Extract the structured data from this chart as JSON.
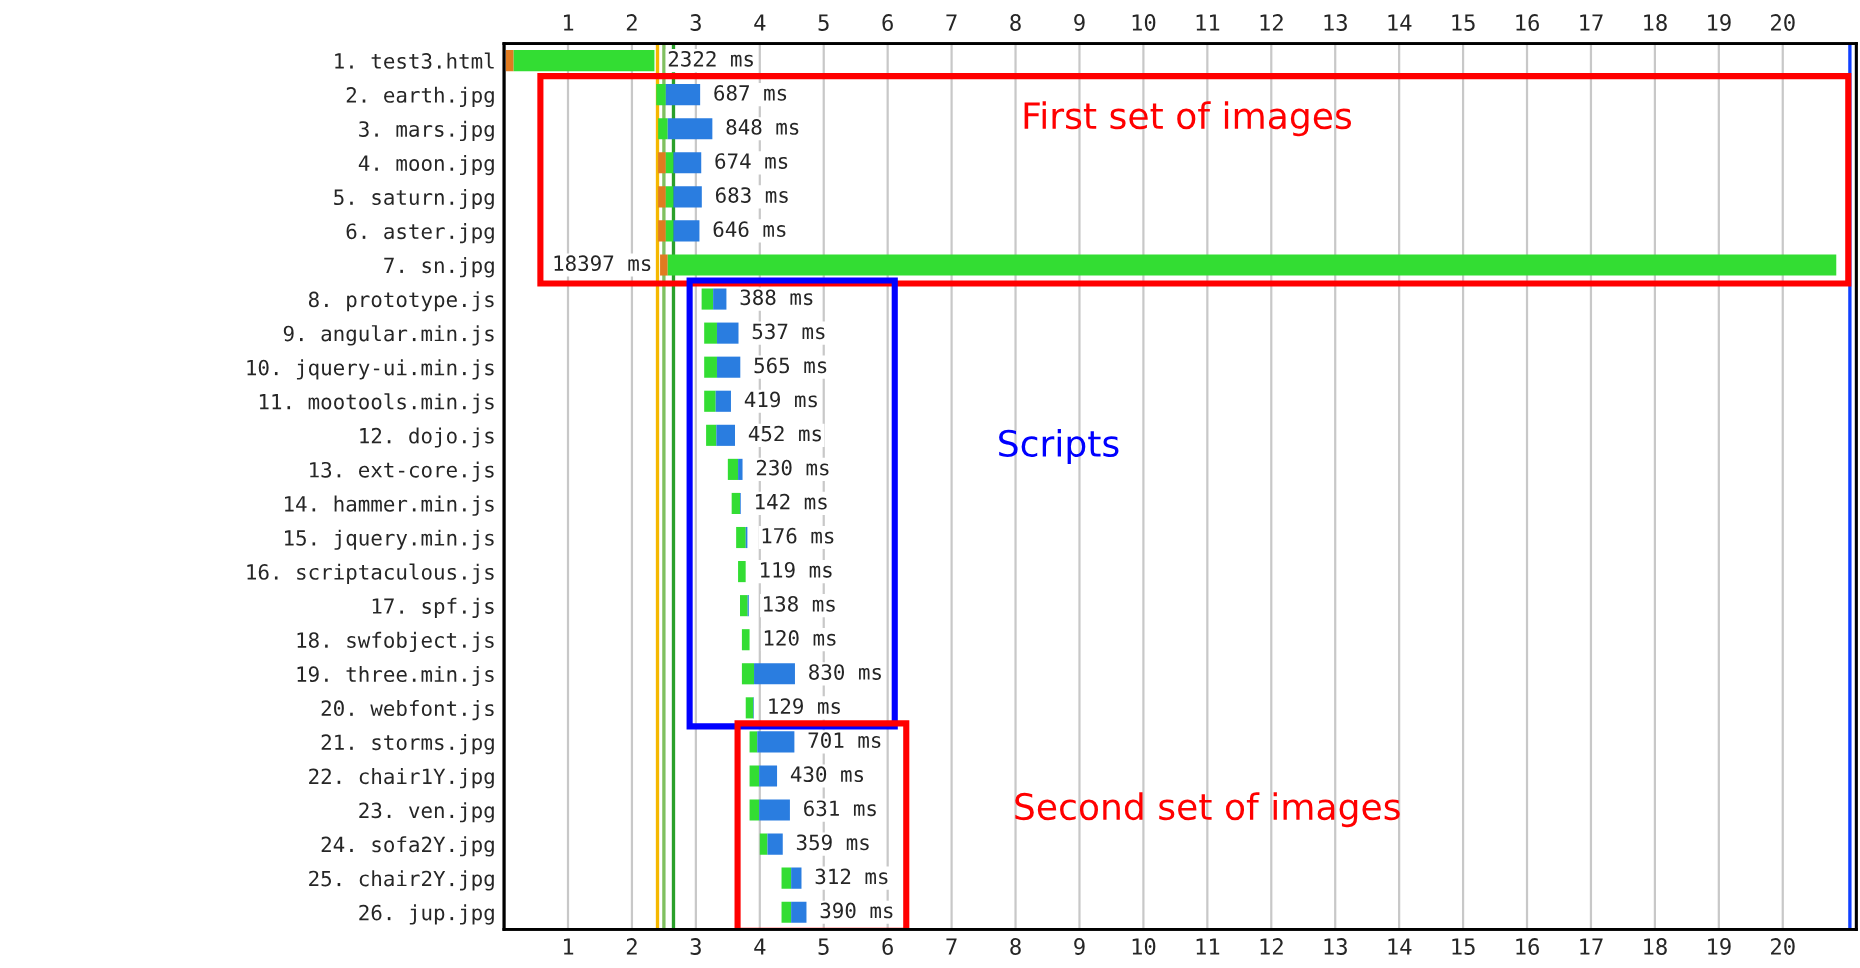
{
  "chart_data": {
    "type": "bar",
    "orientation": "horizontal",
    "categories": [
      "1. test3.html",
      "2. earth.jpg",
      "3. mars.jpg",
      "4. moon.jpg",
      "5. saturn.jpg",
      "6. aster.jpg",
      "7. sn.jpg",
      "8. prototype.js",
      "9. angular.min.js",
      "10. jquery-ui.min.js",
      "11. mootools.min.js",
      "12. dojo.js",
      "13. ext-core.js",
      "14. hammer.min.js",
      "15. jquery.min.js",
      "16. scriptaculous.js",
      "17. spf.js",
      "18. swfobject.js",
      "19. three.min.js",
      "20. webfont.js",
      "21. storms.jpg",
      "22. chair1Y.jpg",
      "23. ven.jpg",
      "24. sofa2Y.jpg",
      "25. chair2Y.jpg",
      "26. jup.jpg"
    ],
    "series": [
      {
        "color": "#e07b20",
        "base": [
          0.03,
          null,
          null,
          2.41,
          2.41,
          2.41,
          2.44,
          null,
          null,
          null,
          null,
          null,
          null,
          null,
          null,
          null,
          null,
          null,
          null,
          null,
          null,
          null,
          null,
          null,
          null,
          null
        ],
        "values": [
          0.12,
          null,
          null,
          0.12,
          0.12,
          0.12,
          0.12,
          null,
          null,
          null,
          null,
          null,
          null,
          null,
          null,
          null,
          null,
          null,
          null,
          null,
          null,
          null,
          null,
          null,
          null,
          null
        ]
      },
      {
        "color": "#33dd33",
        "base": [
          0.15,
          2.38,
          2.41,
          2.53,
          2.53,
          2.53,
          2.56,
          3.09,
          3.13,
          3.13,
          3.13,
          3.16,
          3.5,
          3.56,
          3.63,
          3.66,
          3.69,
          3.72,
          3.72,
          3.78,
          3.84,
          3.84,
          3.84,
          4.0,
          4.34,
          4.34
        ],
        "values": [
          2.202,
          0.15,
          0.15,
          0.12,
          0.12,
          0.12,
          18.277,
          0.18,
          0.2,
          0.2,
          0.18,
          0.16,
          0.16,
          0.13,
          0.15,
          0.119,
          0.12,
          0.12,
          0.19,
          0.12,
          0.12,
          0.15,
          0.15,
          0.12,
          0.15,
          0.15
        ]
      },
      {
        "color": "#2a7de0",
        "base": [
          null,
          2.53,
          2.56,
          2.65,
          2.65,
          2.65,
          null,
          3.27,
          3.33,
          3.33,
          3.31,
          3.32,
          3.66,
          3.69,
          3.78,
          null,
          3.81,
          null,
          3.91,
          3.9,
          3.96,
          3.99,
          3.99,
          4.12,
          4.49,
          4.49
        ],
        "values": [
          null,
          0.537,
          0.698,
          0.434,
          0.443,
          0.406,
          null,
          0.208,
          0.337,
          0.365,
          0.239,
          0.292,
          0.07,
          0.012,
          0.026,
          null,
          0.018,
          null,
          0.64,
          0.009,
          0.581,
          0.28,
          0.481,
          0.239,
          0.162,
          0.24
        ]
      }
    ],
    "totals": [
      "2322 ms",
      "687 ms",
      "848 ms",
      "674 ms",
      "683 ms",
      "646 ms",
      "18397 ms",
      "388 ms",
      "537 ms",
      "565 ms",
      "419 ms",
      "452 ms",
      "230 ms",
      "142 ms",
      "176 ms",
      "119 ms",
      "138 ms",
      "120 ms",
      "830 ms",
      "129 ms",
      "701 ms",
      "430 ms",
      "631 ms",
      "359 ms",
      "312 ms",
      "390 ms"
    ],
    "xlim": [
      0,
      21.15
    ],
    "xticks": [
      1,
      2,
      3,
      4,
      5,
      6,
      7,
      8,
      9,
      10,
      11,
      12,
      13,
      14,
      15,
      16,
      17,
      18,
      19,
      20
    ],
    "x2lim": [
      0,
      21.15
    ],
    "x2ticks": [
      1,
      2,
      3,
      4,
      5,
      6,
      7,
      8,
      9,
      10,
      11,
      12,
      13,
      14,
      15,
      16,
      17,
      18,
      19,
      20
    ],
    "grid": "x",
    "ref_lines": [
      {
        "axis": "x",
        "value": 2.4,
        "color": "#f5b800"
      },
      {
        "axis": "x",
        "value": 2.5,
        "color": "#80c060"
      },
      {
        "axis": "x",
        "value": 2.65,
        "color": "#2aa02a"
      },
      {
        "axis": "x",
        "value": 21.05,
        "color": "#1040ff"
      }
    ],
    "annotations": [
      "First set of images",
      "Scripts",
      "Second set of images"
    ]
  }
}
